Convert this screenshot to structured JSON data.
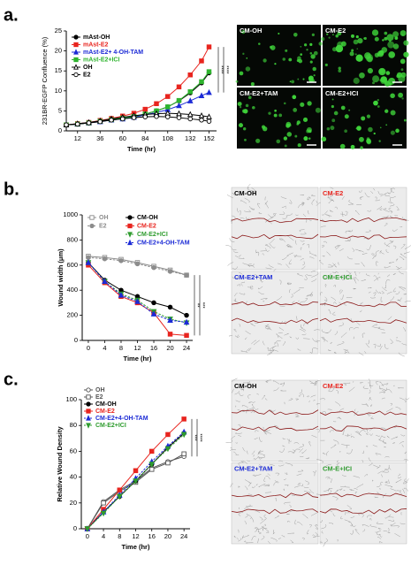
{
  "chart_data": [
    {
      "type": "line",
      "panel": "a.",
      "y_label": "231BR-EGFP Confluence (%)",
      "x_label": "Time (hr)",
      "x": [
        0,
        12,
        24,
        36,
        48,
        60,
        72,
        84,
        96,
        108,
        120,
        132,
        144,
        152
      ],
      "xlim": [
        0,
        160
      ],
      "xticks": [
        12,
        36,
        60,
        84,
        108,
        132,
        152
      ],
      "ylim": [
        0,
        25
      ],
      "yticks": [
        0,
        5,
        10,
        15,
        20,
        25
      ],
      "series": [
        {
          "name": "mAst-OH",
          "color": "#000000",
          "marker": "circle",
          "filled": true,
          "dashed": false,
          "values": [
            1.5,
            1.7,
            2,
            2.4,
            2.8,
            3.2,
            3.6,
            4.2,
            5,
            6,
            7.5,
            9.5,
            12,
            14.5
          ]
        },
        {
          "name": "mAst-E2",
          "color": "#e8251f",
          "marker": "square",
          "filled": true,
          "dashed": false,
          "values": [
            1.5,
            1.8,
            2.1,
            2.6,
            3.1,
            3.7,
            4.4,
            5.4,
            6.8,
            8.6,
            11,
            14,
            17.5,
            21
          ]
        },
        {
          "name": "mAst-E2+ 4-OH-TAM",
          "color": "#1c2bd6",
          "marker": "triangle",
          "filled": true,
          "dashed": false,
          "values": [
            1.5,
            1.7,
            2,
            2.3,
            2.7,
            3,
            3.4,
            4,
            4.6,
            5.3,
            6.3,
            7.5,
            8.8,
            9.6
          ]
        },
        {
          "name": "mAst-E2+ICI",
          "color": "#2fb42f",
          "marker": "square",
          "filled": true,
          "dashed": false,
          "values": [
            1.5,
            1.7,
            2,
            2.4,
            2.8,
            3.2,
            3.6,
            4.2,
            5,
            6,
            7.6,
            9.8,
            12.3,
            14.8
          ]
        },
        {
          "name": "OH",
          "color": "#000000",
          "marker": "triangle",
          "filled": false,
          "dashed": false,
          "values": [
            1.5,
            1.8,
            2.1,
            2.5,
            3,
            3.4,
            3.8,
            4.1,
            4.3,
            4.4,
            4.3,
            4.1,
            3.8,
            3.5
          ]
        },
        {
          "name": "E2",
          "color": "#000000",
          "marker": "circle",
          "filled": false,
          "dashed": false,
          "values": [
            1.5,
            1.7,
            2,
            2.3,
            2.7,
            3,
            3.3,
            3.5,
            3.6,
            3.5,
            3.3,
            3,
            2.7,
            2.4
          ]
        }
      ],
      "sig_labels": [
        "****",
        "****"
      ],
      "image_style": "fluorescence",
      "image_labels": [
        "CM-OH",
        "CM-E2",
        "CM-E2+TAM",
        "CM-E2+ICI"
      ],
      "image_label_colors": [
        "#ffffff",
        "#ffffff",
        "#ffffff",
        "#ffffff"
      ]
    },
    {
      "type": "line",
      "panel": "b.",
      "y_label": "Wound width  (μm)",
      "x_label": "Time (hr)",
      "x": [
        0,
        4,
        8,
        12,
        16,
        20,
        24
      ],
      "xlim": [
        -1.5,
        25.5
      ],
      "xticks": [
        0,
        4,
        8,
        12,
        16,
        20,
        24
      ],
      "ylim": [
        0,
        1000
      ],
      "yticks": [
        0,
        200,
        400,
        600,
        800,
        1000
      ],
      "series": [
        {
          "name": "OH",
          "color": "#8c8c8c",
          "marker": "square",
          "filled": false,
          "dashed": false,
          "values": [
            670,
            660,
            645,
            620,
            590,
            560,
            520
          ]
        },
        {
          "name": "E2",
          "color": "#8c8c8c",
          "marker": "circle",
          "filled": true,
          "dashed": true,
          "values": [
            660,
            650,
            635,
            610,
            580,
            550,
            520
          ]
        },
        {
          "name": "CM-OH",
          "color": "#000000",
          "marker": "circle",
          "filled": true,
          "dashed": false,
          "values": [
            620,
            480,
            400,
            350,
            300,
            265,
            200
          ]
        },
        {
          "name": "CM-E2",
          "color": "#e8251f",
          "marker": "square",
          "filled": true,
          "dashed": false,
          "values": [
            600,
            460,
            350,
            300,
            220,
            50,
            40
          ]
        },
        {
          "name": "CM-E2+ICI",
          "color": "#2f9c2f",
          "marker": "triangle-down",
          "filled": true,
          "dashed": true,
          "values": [
            620,
            470,
            370,
            320,
            230,
            170,
            140
          ]
        },
        {
          "name": "CM-E2+4-OH-TAM",
          "color": "#1c2bd6",
          "marker": "triangle",
          "filled": true,
          "dashed": true,
          "values": [
            620,
            470,
            360,
            310,
            210,
            160,
            145
          ]
        }
      ],
      "sig_labels": [
        "**",
        "***"
      ],
      "image_style": "wound",
      "image_labels": [
        "CM-OH",
        "CM-E2",
        "CM-E2+TAM",
        "CM-E+ICI"
      ],
      "image_label_colors": [
        "#000000",
        "#e8251f",
        "#1c2bd6",
        "#2f9c2f"
      ]
    },
    {
      "type": "line",
      "panel": "c.",
      "y_label": "Relative Wound Density",
      "x_label": "Time (hr)",
      "x": [
        0,
        4,
        8,
        12,
        16,
        20,
        24
      ],
      "xlim": [
        -1.5,
        25.5
      ],
      "xticks": [
        0,
        4,
        8,
        12,
        16,
        20,
        24
      ],
      "ylim": [
        0,
        100
      ],
      "yticks": [
        0,
        20,
        40,
        60,
        80,
        100
      ],
      "series": [
        {
          "name": "OH",
          "color": "#555555",
          "marker": "circle",
          "filled": false,
          "dashed": false,
          "values": [
            0,
            21,
            30,
            37,
            47,
            52,
            56
          ]
        },
        {
          "name": "E2",
          "color": "#555555",
          "marker": "square",
          "filled": false,
          "dashed": false,
          "values": [
            0,
            20,
            29,
            36,
            46,
            51,
            58
          ]
        },
        {
          "name": "CM-OH",
          "color": "#000000",
          "marker": "circle",
          "filled": true,
          "dashed": false,
          "values": [
            0,
            13,
            25,
            37,
            50,
            63,
            74
          ]
        },
        {
          "name": "CM-E2",
          "color": "#e8251f",
          "marker": "square",
          "filled": true,
          "dashed": false,
          "values": [
            0,
            15,
            30,
            45,
            60,
            73,
            85
          ]
        },
        {
          "name": "CM-E2+4-OH-TAM",
          "color": "#1c2bd6",
          "marker": "triangle",
          "filled": true,
          "dashed": true,
          "values": [
            0,
            13,
            26,
            39,
            52,
            64,
            75
          ]
        },
        {
          "name": "CM-E2+ICI",
          "color": "#2f9c2f",
          "marker": "triangle-down",
          "filled": true,
          "dashed": true,
          "values": [
            0,
            12,
            25,
            37,
            50,
            62,
            73
          ]
        }
      ],
      "sig_labels": [
        "***",
        "****"
      ],
      "image_style": "wound",
      "image_labels": [
        "CM-OH",
        "CM-E2",
        "CM-E2+TAM",
        "CM-E+ICI"
      ],
      "image_label_colors": [
        "#000000",
        "#e8251f",
        "#1c2bd6",
        "#2f9c2f"
      ]
    }
  ]
}
